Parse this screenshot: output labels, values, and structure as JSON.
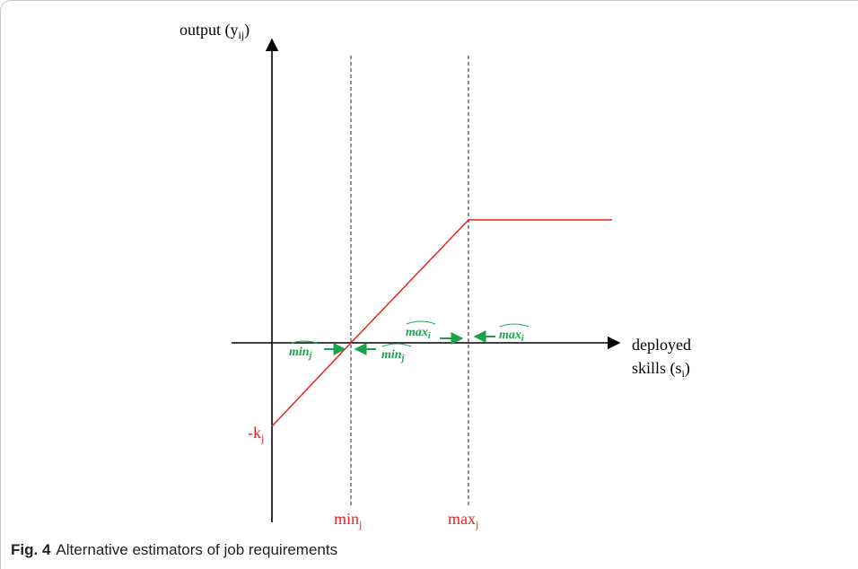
{
  "diagram": {
    "y_axis_label": "output (y",
    "y_axis_label_sub": "ij",
    "x_axis_label_line1": "deployed",
    "x_axis_label_line2": "skills (s",
    "x_axis_label_sub": "i",
    "intercept_label": "-k",
    "intercept_sub": "j",
    "min_label": "min",
    "min_sub": "j",
    "max_label": "max",
    "max_sub": "j",
    "estimators": {
      "min_left": "min",
      "min_left_sub": "j",
      "min_right": "min",
      "min_right_sub": "j",
      "max_left": "max",
      "max_left_sub": "i",
      "max_right": "max",
      "max_right_sub": "i"
    },
    "colors": {
      "function_line": "#e8231f",
      "estimator": "#1aa34a",
      "axis": "#000000"
    }
  },
  "caption": {
    "figure_number": "Fig. 4",
    "text": "Alternative estimators of job requirements"
  }
}
